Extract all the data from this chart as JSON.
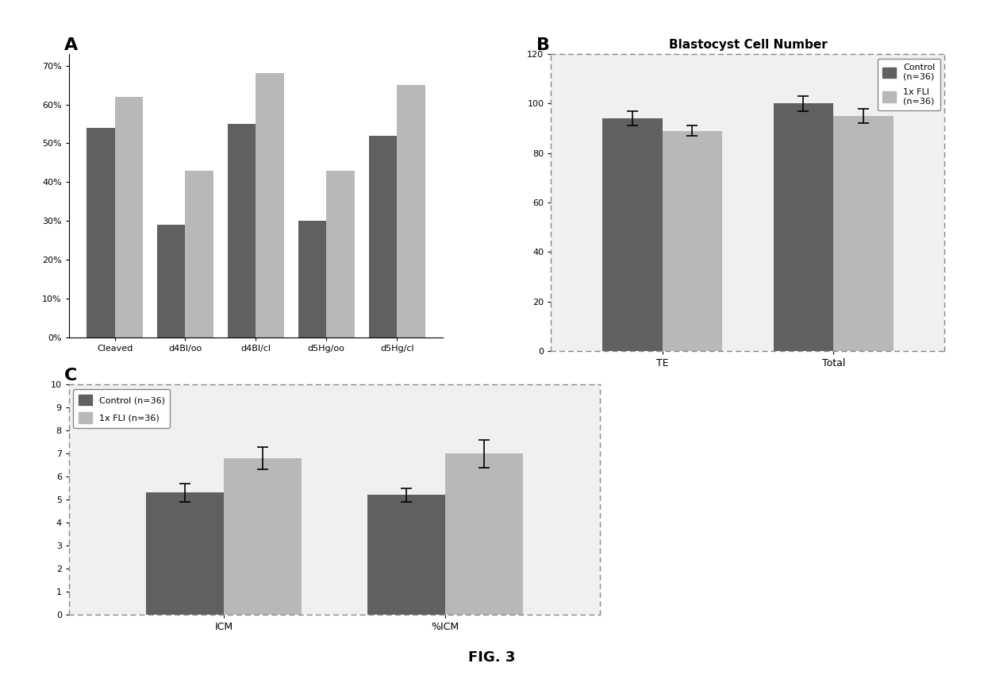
{
  "panel_A": {
    "label": "A",
    "categories": [
      "Cleaved",
      "d4Bl/oo",
      "d4Bl/cl",
      "d5Hg/oo",
      "d5Hg/cl"
    ],
    "control_values": [
      0.54,
      0.29,
      0.55,
      0.3,
      0.52
    ],
    "fli_values": [
      0.62,
      0.43,
      0.68,
      0.43,
      0.65
    ],
    "ytick_labels": [
      "0%",
      "10%",
      "20%",
      "30%",
      "40%",
      "50%",
      "60%",
      "70%"
    ],
    "yticks": [
      0.0,
      0.1,
      0.2,
      0.3,
      0.4,
      0.5,
      0.6,
      0.7
    ]
  },
  "panel_B": {
    "label": "B",
    "title": "Blastocyst Cell Number",
    "categories": [
      "TE",
      "Total"
    ],
    "control_values": [
      94,
      100
    ],
    "fli_values": [
      89,
      95
    ],
    "control_err": [
      3,
      3
    ],
    "fli_err": [
      2,
      3
    ],
    "ylim": [
      0,
      120
    ],
    "yticks": [
      0,
      20,
      40,
      60,
      80,
      100,
      120
    ],
    "legend_control": "Control\n(n=36)",
    "legend_fli": "1x FLI\n(n=36)"
  },
  "panel_C": {
    "label": "C",
    "categories": [
      "ICM",
      "%ICM"
    ],
    "control_values": [
      5.3,
      5.2
    ],
    "fli_values": [
      6.8,
      7.0
    ],
    "control_err": [
      0.4,
      0.3
    ],
    "fli_err": [
      0.5,
      0.6
    ],
    "ylim": [
      0,
      10
    ],
    "yticks": [
      0,
      1,
      2,
      3,
      4,
      5,
      6,
      7,
      8,
      9,
      10
    ],
    "legend_control": "Control (n=36)",
    "legend_fli": "1x FLI (n=36)"
  },
  "dark_color": "#606060",
  "light_color": "#b8b8b8",
  "fig_title": "FIG. 3",
  "fig_background": "#ffffff"
}
